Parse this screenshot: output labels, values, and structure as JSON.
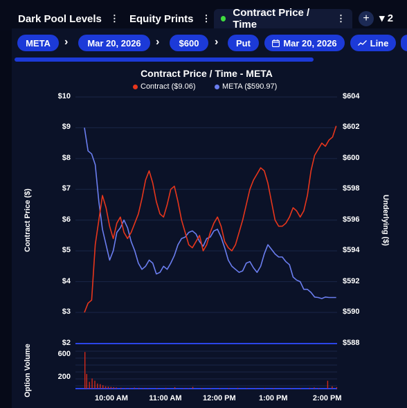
{
  "tabs": [
    {
      "label": "Dark Pool Levels",
      "menu": "⋮"
    },
    {
      "label": "Equity Prints",
      "menu": "⋮"
    },
    {
      "label": "Contract Price / Time",
      "menu": "⋮"
    }
  ],
  "tab_controls": {
    "add": "+",
    "count": "2",
    "caret": "▾"
  },
  "breadcrumbs": [
    "META",
    "Mar 20, 2026",
    "$600",
    "Put",
    "Mar 20, 2026",
    "Line"
  ],
  "breadcrumb_separator": "›",
  "progress": 0.76,
  "colors": {
    "contract": "#e8361c",
    "underlying": "#6b7ef0",
    "accent": "#1c3ad8",
    "volume": "#d12a1a"
  },
  "chart_data": {
    "type": "line",
    "title": "Contract Price / Time - META",
    "legend": [
      "Contract ($9.06)",
      "META ($590.97)"
    ],
    "y_left_label": "Contract Price ($)",
    "y_right_label": "Underlying ($)",
    "y_left_ticks": [
      "$10",
      "$9",
      "$8",
      "$7",
      "$6",
      "$5",
      "$4",
      "$3"
    ],
    "y_right_ticks": [
      "$604",
      "$602",
      "$600",
      "$598",
      "$596",
      "$594",
      "$592",
      "$590"
    ],
    "y_left_range": [
      2.75,
      10
    ],
    "y_right_range": [
      589.5,
      604
    ],
    "volume_label": "Option Volume",
    "volume_ticks": [
      "600",
      "200"
    ],
    "volume_left_tick": "$2",
    "volume_right_tick": "$588",
    "x_ticks": [
      "10:00 AM",
      "11:00 AM",
      "12:00 PM",
      "1:00 PM",
      "2:00 PM"
    ],
    "x_range_minutes": [
      -10,
      281
    ],
    "x_tick_minutes": [
      30,
      90,
      150,
      210,
      270
    ],
    "series": [
      {
        "name": "Contract ($9.06)",
        "x": [
          0,
          4,
          8,
          12,
          16,
          20,
          24,
          28,
          32,
          36,
          40,
          44,
          48,
          52,
          56,
          60,
          64,
          68,
          72,
          76,
          80,
          84,
          88,
          92,
          96,
          100,
          104,
          108,
          112,
          116,
          120,
          124,
          128,
          132,
          136,
          140,
          144,
          148,
          152,
          156,
          160,
          164,
          168,
          172,
          176,
          180,
          184,
          188,
          192,
          196,
          200,
          204,
          208,
          212,
          216,
          220,
          224,
          228,
          232,
          236,
          240,
          244,
          248,
          252,
          256,
          260,
          264,
          268,
          272,
          276,
          280
        ],
        "y": [
          3.0,
          3.3,
          3.4,
          5.2,
          6.0,
          6.8,
          6.4,
          5.8,
          5.4,
          5.9,
          6.1,
          5.6,
          5.4,
          5.6,
          5.9,
          6.2,
          6.7,
          7.3,
          7.6,
          7.2,
          6.6,
          6.2,
          6.1,
          6.5,
          7.0,
          7.1,
          6.6,
          6.0,
          5.6,
          5.2,
          5.1,
          5.3,
          5.5,
          5.0,
          5.2,
          5.6,
          5.9,
          6.1,
          5.8,
          5.3,
          5.1,
          5.0,
          5.2,
          5.6,
          6.0,
          6.5,
          7.0,
          7.3,
          7.5,
          7.7,
          7.6,
          7.2,
          6.6,
          6.0,
          5.8,
          5.8,
          5.9,
          6.1,
          6.4,
          6.3,
          6.1,
          6.3,
          6.8,
          7.6,
          8.1,
          8.3,
          8.5,
          8.4,
          8.6,
          8.7,
          9.06
        ]
      },
      {
        "name": "META ($590.97)",
        "x": [
          0,
          4,
          8,
          12,
          16,
          20,
          24,
          28,
          32,
          36,
          40,
          44,
          48,
          52,
          56,
          60,
          64,
          68,
          72,
          76,
          80,
          84,
          88,
          92,
          96,
          100,
          104,
          108,
          112,
          116,
          120,
          124,
          128,
          132,
          136,
          140,
          144,
          148,
          152,
          156,
          160,
          164,
          168,
          172,
          176,
          180,
          184,
          188,
          192,
          196,
          200,
          204,
          208,
          212,
          216,
          220,
          224,
          228,
          232,
          236,
          240,
          244,
          248,
          252,
          256,
          260,
          264,
          268,
          272,
          276,
          280
        ],
        "y": [
          602.0,
          600.5,
          600.3,
          599.6,
          597.2,
          595.4,
          594.4,
          593.4,
          594.0,
          595.2,
          595.5,
          596.0,
          595.5,
          594.6,
          594.0,
          593.2,
          592.8,
          593.0,
          593.4,
          593.2,
          592.5,
          592.6,
          593.0,
          592.8,
          593.2,
          593.7,
          594.4,
          594.8,
          594.9,
          595.2,
          595.3,
          595.1,
          594.6,
          594.3,
          594.8,
          594.9,
          595.3,
          595.4,
          594.9,
          594.2,
          593.4,
          593.0,
          592.8,
          592.6,
          592.7,
          593.2,
          593.3,
          592.9,
          592.6,
          593.0,
          593.8,
          594.4,
          594.1,
          593.8,
          593.6,
          593.6,
          593.3,
          593.1,
          592.3,
          592.1,
          592.0,
          591.5,
          591.5,
          591.3,
          591.0,
          590.97,
          590.9,
          591.0,
          590.97,
          590.97,
          590.97
        ]
      }
    ],
    "volume_range": [
      0,
      800
    ],
    "volume_x": [
      0,
      2,
      5,
      8,
      11,
      14,
      17,
      20,
      23,
      26,
      29,
      32,
      35,
      40,
      45,
      50,
      55,
      60,
      65,
      70,
      80,
      90,
      100,
      110,
      115,
      120,
      130,
      140,
      150,
      160,
      170,
      180,
      190,
      200,
      210,
      220,
      230,
      240,
      250,
      255,
      260,
      270,
      275,
      280
    ],
    "volume": [
      650,
      260,
      120,
      180,
      140,
      90,
      80,
      60,
      40,
      35,
      30,
      25,
      20,
      15,
      12,
      10,
      18,
      14,
      10,
      8,
      12,
      14,
      25,
      10,
      8,
      30,
      12,
      8,
      10,
      12,
      14,
      10,
      8,
      10,
      12,
      6,
      8,
      10,
      14,
      20,
      12,
      140,
      40,
      25
    ]
  }
}
